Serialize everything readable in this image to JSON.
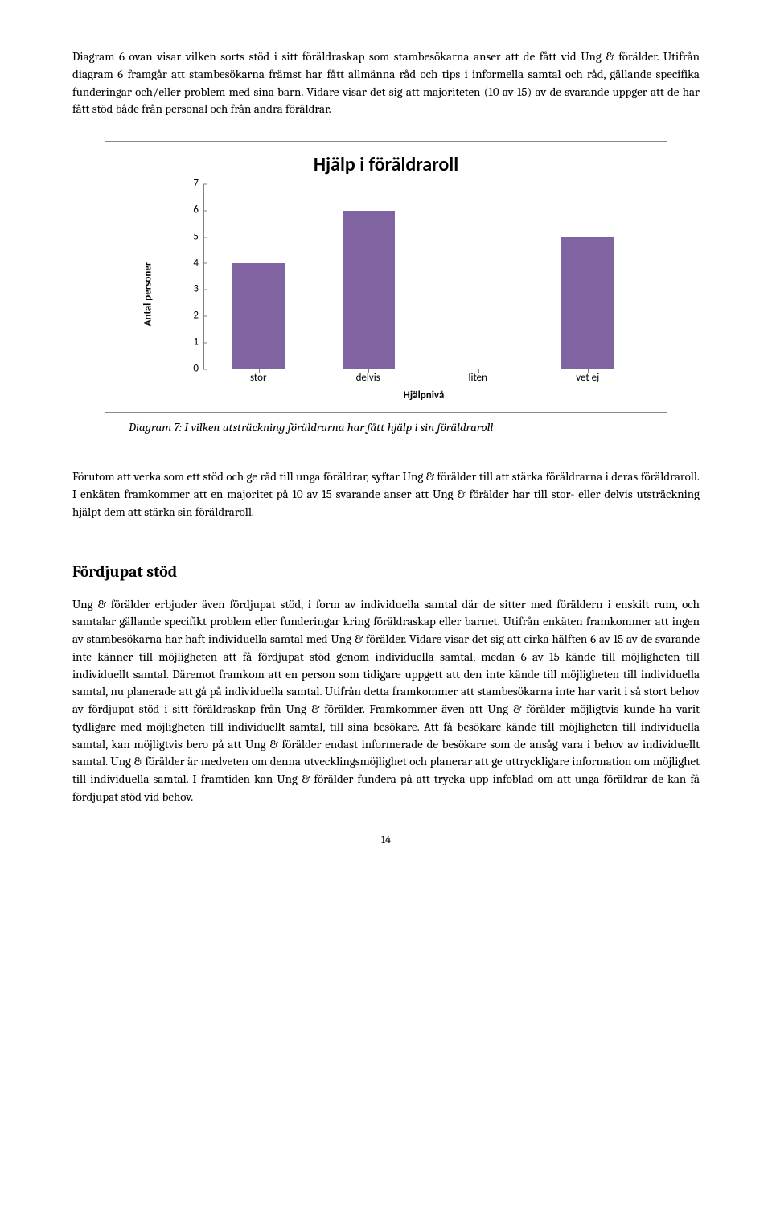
{
  "para1": "Diagram 6 ovan visar vilken sorts stöd i sitt föräldraskap som stambesökarna anser att de fått vid Ung & förälder. Utifrån diagram 6 framgår att stambesökarna främst har fått allmänna råd och tips i informella samtal och råd, gällande specifika funderingar och/eller problem med sina barn. Vidare visar det sig att majoriteten (10 av 15) av de svarande uppger att de har fått stöd både från personal och från andra föräldrar.",
  "chart": {
    "title": "Hjälp i föräldraroll",
    "ylabel": "Antal personer",
    "xlabel": "Hjälpnivå",
    "y_max": 7,
    "y_ticks": [
      0,
      1,
      2,
      3,
      4,
      5,
      6,
      7
    ],
    "categories": [
      "stor",
      "delvis",
      "liten",
      "vet ej"
    ],
    "values": [
      4,
      6,
      0,
      5
    ],
    "bar_color": "#8064a2",
    "axis_color": "#808080",
    "tick_font_size": 13,
    "title_font_size": 24,
    "bar_width_pct": 12
  },
  "caption": "Diagram 7: I vilken utsträckning föräldrarna har fått hjälp i sin föräldraroll",
  "para2": "Förutom att verka som ett stöd och ge råd till unga föräldrar, syftar Ung & förälder till att stärka föräldrarna i deras föräldraroll. I enkäten framkommer att en majoritet på 10 av 15 svarande anser att Ung & förälder har till stor- eller delvis utsträckning hjälpt dem att stärka sin föräldraroll.",
  "heading": "Fördjupat stöd",
  "para3": "Ung & förälder erbjuder även fördjupat stöd, i form av individuella samtal där de sitter med föräldern i enskilt rum, och samtalar gällande specifikt problem eller funderingar kring föräldraskap eller barnet. Utifrån enkäten framkommer att ingen av stambesökarna har haft individuella samtal med Ung & förälder. Vidare visar det sig att cirka hälften 6 av 15 av de svarande inte känner till möjligheten att få fördjupat stöd genom individuella samtal, medan 6 av 15 kände till möjligheten till individuellt samtal. Däremot framkom att en person som tidigare uppgett att den inte kände till möjligheten till individuella samtal, nu planerade att gå på individuella samtal. Utifrån detta framkommer att stambesökarna inte har varit i så stort behov av fördjupat stöd i sitt föräldraskap från Ung & förälder. Framkommer även att Ung & förälder möjligtvis kunde ha varit tydligare med möjligheten till individuellt samtal, till sina besökare. Att få besökare kände till möjligheten till individuella samtal, kan möjligtvis bero på att Ung & förälder endast informerade de besökare som de ansåg vara i behov av individuellt samtal. Ung & förälder är medveten om denna utvecklingsmöjlighet och planerar att ge uttryckligare information om möjlighet till individuella samtal. I framtiden kan Ung & förälder fundera på att trycka upp infoblad om att unga föräldrar de kan få fördjupat stöd vid behov.",
  "page_num": "14"
}
